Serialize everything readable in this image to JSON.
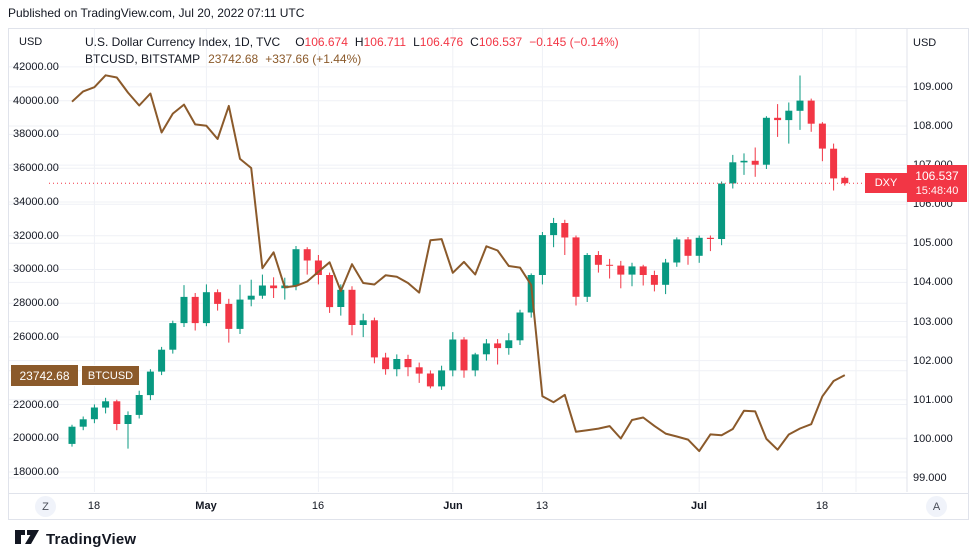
{
  "header": {
    "published": "Published on TradingView.com, Jul 20, 2022 07:11 UTC"
  },
  "legend": {
    "dxy": {
      "title": "U.S. Dollar Currency Index, 1D, TVC",
      "o_label": "O",
      "o": "106.674",
      "h_label": "H",
      "h": "106.711",
      "l_label": "L",
      "l": "106.476",
      "c_label": "C",
      "c": "106.537",
      "change": "−0.145 (−0.14%)"
    },
    "btc": {
      "title": "BTCUSD, BITSTAMP",
      "value": "23742.68",
      "change": "+337.66 (+1.44%)"
    }
  },
  "axes": {
    "left": {
      "unit": "USD",
      "ticks": [
        {
          "label": "42000.00",
          "v": 42000
        },
        {
          "label": "40000.00",
          "v": 40000
        },
        {
          "label": "38000.00",
          "v": 38000
        },
        {
          "label": "36000.00",
          "v": 36000
        },
        {
          "label": "34000.00",
          "v": 34000
        },
        {
          "label": "32000.00",
          "v": 32000
        },
        {
          "label": "30000.00",
          "v": 30000
        },
        {
          "label": "28000.00",
          "v": 28000
        },
        {
          "label": "26000.00",
          "v": 26000
        },
        {
          "label": "24000.00",
          "v": 24000
        },
        {
          "label": "22000.00",
          "v": 22000
        },
        {
          "label": "20000.00",
          "v": 20000
        },
        {
          "label": "18000.00",
          "v": 18000
        }
      ]
    },
    "right": {
      "unit": "USD",
      "ticks": [
        {
          "label": "109.000",
          "v": 109
        },
        {
          "label": "108.000",
          "v": 108
        },
        {
          "label": "107.000",
          "v": 107
        },
        {
          "label": "106.000",
          "v": 106
        },
        {
          "label": "105.000",
          "v": 105
        },
        {
          "label": "104.000",
          "v": 104
        },
        {
          "label": "103.000",
          "v": 103
        },
        {
          "label": "102.000",
          "v": 102
        },
        {
          "label": "101.000",
          "v": 101
        },
        {
          "label": "100.000",
          "v": 100
        },
        {
          "label": "99.000",
          "v": 99
        }
      ]
    },
    "time": {
      "ticks": [
        {
          "label": "18",
          "i": 2,
          "bold": false
        },
        {
          "label": "May",
          "i": 12,
          "bold": true
        },
        {
          "label": "16",
          "i": 22,
          "bold": false
        },
        {
          "label": "Jun",
          "i": 34,
          "bold": true
        },
        {
          "label": "13",
          "i": 42,
          "bold": false
        },
        {
          "label": "Jul",
          "i": 56,
          "bold": true
        },
        {
          "label": "18",
          "i": 67,
          "bold": false
        }
      ]
    }
  },
  "badges": {
    "dxy": {
      "label": "DXY",
      "price": "106.537",
      "countdown": "15:48:40",
      "value": 106.537
    },
    "btc": {
      "label": "BTCUSD",
      "price": "23742.68",
      "value": 23742.68
    }
  },
  "buttons": {
    "left_scale": "Z",
    "right_scale": "A"
  },
  "footer": {
    "brand": "TradingView"
  },
  "colors": {
    "up": "#089981",
    "down": "#f23645",
    "btc_line": "#8b5a2b",
    "accent_red": "#f23645",
    "grid": "#eff1f6",
    "border": "#e0e3eb",
    "text": "#131722"
  },
  "chart_data": {
    "type": "mixed",
    "legend_position": "top-left",
    "grid": true,
    "left_axis": {
      "unit": "USD",
      "range": [
        16818,
        44246
      ]
    },
    "right_axis": {
      "unit": "USD",
      "range": [
        98.64,
        110.48
      ]
    },
    "future_gridline_index": 70,
    "x": [
      "2022-04-14",
      "2022-04-15",
      "2022-04-18",
      "2022-04-19",
      "2022-04-20",
      "2022-04-21",
      "2022-04-22",
      "2022-04-25",
      "2022-04-26",
      "2022-04-27",
      "2022-04-28",
      "2022-04-29",
      "2022-05-02",
      "2022-05-03",
      "2022-05-04",
      "2022-05-05",
      "2022-05-06",
      "2022-05-09",
      "2022-05-10",
      "2022-05-11",
      "2022-05-12",
      "2022-05-13",
      "2022-05-16",
      "2022-05-17",
      "2022-05-18",
      "2022-05-19",
      "2022-05-20",
      "2022-05-23",
      "2022-05-24",
      "2022-05-25",
      "2022-05-26",
      "2022-05-27",
      "2022-05-30",
      "2022-05-31",
      "2022-06-01",
      "2022-06-02",
      "2022-06-03",
      "2022-06-06",
      "2022-06-07",
      "2022-06-08",
      "2022-06-09",
      "2022-06-10",
      "2022-06-13",
      "2022-06-14",
      "2022-06-15",
      "2022-06-16",
      "2022-06-17",
      "2022-06-20",
      "2022-06-21",
      "2022-06-22",
      "2022-06-23",
      "2022-06-24",
      "2022-06-27",
      "2022-06-28",
      "2022-06-29",
      "2022-06-30",
      "2022-07-01",
      "2022-07-04",
      "2022-07-05",
      "2022-07-06",
      "2022-07-07",
      "2022-07-08",
      "2022-07-11",
      "2022-07-12",
      "2022-07-13",
      "2022-07-14",
      "2022-07-15",
      "2022-07-18",
      "2022-07-19",
      "2022-07-20"
    ],
    "series": [
      {
        "name": "U.S. Dollar Currency Index",
        "symbol": "DXY",
        "type": "candlestick",
        "axis": "right",
        "open": [
          99.87,
          100.31,
          100.5,
          100.8,
          100.96,
          100.38,
          100.61,
          101.12,
          101.72,
          102.28,
          102.96,
          103.63,
          102.96,
          103.75,
          103.45,
          102.81,
          103.56,
          103.66,
          103.92,
          103.85,
          103.92,
          104.85,
          104.56,
          104.19,
          103.37,
          103.81,
          102.91,
          103.03,
          102.08,
          101.78,
          102.04,
          101.83,
          101.67,
          101.34,
          101.75,
          102.54,
          101.75,
          102.16,
          102.44,
          102.32,
          102.52,
          103.23,
          104.19,
          105.21,
          105.52,
          105.15,
          103.63,
          104.7,
          104.45,
          104.43,
          104.2,
          104.41,
          104.19,
          103.94,
          104.51,
          105.1,
          104.68,
          105.14,
          105.11,
          106.53,
          107.07,
          107.11,
          107.01,
          108.21,
          108.15,
          108.39,
          108.65,
          108.06,
          107.42,
          106.674
        ],
        "high": [
          100.36,
          100.57,
          100.88,
          101.05,
          101.0,
          100.7,
          101.23,
          101.78,
          102.35,
          103.02,
          103.93,
          103.73,
          103.95,
          103.82,
          103.58,
          103.94,
          104.07,
          104.2,
          104.13,
          104.12,
          104.93,
          104.9,
          104.7,
          104.25,
          103.95,
          103.9,
          103.2,
          103.1,
          102.2,
          102.16,
          102.15,
          101.95,
          101.75,
          101.87,
          102.73,
          102.6,
          102.2,
          102.55,
          102.55,
          102.7,
          103.3,
          104.23,
          105.29,
          105.65,
          105.6,
          105.2,
          104.75,
          104.8,
          104.6,
          104.55,
          104.5,
          104.45,
          104.3,
          104.6,
          105.15,
          105.16,
          105.2,
          105.2,
          106.58,
          107.26,
          107.3,
          107.45,
          108.25,
          108.56,
          108.6,
          109.29,
          108.7,
          108.1,
          107.55,
          106.711
        ],
        "low": [
          99.8,
          100.22,
          100.4,
          100.65,
          100.22,
          99.75,
          100.52,
          100.99,
          101.63,
          102.18,
          102.86,
          102.77,
          102.88,
          103.28,
          102.46,
          102.68,
          103.39,
          103.58,
          103.6,
          103.56,
          103.8,
          104.2,
          103.95,
          103.22,
          103.15,
          102.65,
          102.6,
          101.93,
          101.64,
          101.6,
          101.6,
          101.43,
          101.29,
          101.25,
          101.6,
          101.56,
          101.6,
          102.0,
          101.9,
          102.15,
          102.4,
          103.1,
          103.95,
          104.9,
          104.7,
          103.41,
          103.5,
          104.25,
          104.1,
          103.85,
          103.9,
          103.92,
          103.77,
          103.7,
          104.4,
          104.45,
          104.5,
          104.8,
          104.95,
          106.4,
          106.75,
          106.7,
          106.9,
          107.72,
          107.55,
          107.9,
          107.85,
          107.1,
          106.35,
          106.476
        ],
        "close": [
          100.31,
          100.5,
          100.8,
          100.96,
          100.38,
          100.61,
          101.12,
          101.72,
          102.28,
          102.96,
          103.63,
          102.96,
          103.75,
          103.45,
          102.81,
          103.56,
          103.66,
          103.92,
          103.85,
          103.92,
          104.85,
          104.56,
          104.19,
          103.37,
          103.81,
          102.91,
          103.03,
          102.08,
          101.78,
          102.04,
          101.83,
          101.67,
          101.34,
          101.75,
          102.54,
          101.75,
          102.16,
          102.44,
          102.32,
          102.52,
          103.23,
          104.19,
          105.21,
          105.52,
          105.15,
          103.63,
          104.7,
          104.45,
          104.43,
          104.2,
          104.41,
          104.19,
          103.94,
          104.51,
          105.1,
          104.68,
          105.14,
          105.11,
          106.53,
          107.07,
          107.11,
          107.01,
          108.21,
          108.15,
          108.39,
          108.65,
          108.06,
          107.42,
          106.66,
          106.537
        ]
      },
      {
        "name": "BTCUSD",
        "symbol": "BTCUSD",
        "type": "line",
        "axis": "left",
        "values": [
          39940,
          40552,
          40801,
          41502,
          41374,
          40480,
          39713,
          40426,
          38113,
          39235,
          39768,
          38596,
          38510,
          37731,
          39690,
          36553,
          36013,
          30077,
          31017,
          28936,
          29029,
          29287,
          29862,
          30425,
          28720,
          30314,
          29200,
          29109,
          29655,
          29570,
          29201,
          28629,
          31734,
          31801,
          29805,
          30452,
          29700,
          31373,
          31125,
          30205,
          30111,
          29083,
          22487,
          22136,
          22573,
          20385,
          20473,
          20574,
          20719,
          19987,
          21085,
          21233,
          20735,
          20280,
          20104,
          19925,
          19242,
          20231,
          20175,
          20548,
          21637,
          21592,
          19963,
          19325,
          20222,
          20577,
          20836,
          22485,
          23396,
          23742.68
        ]
      }
    ]
  }
}
